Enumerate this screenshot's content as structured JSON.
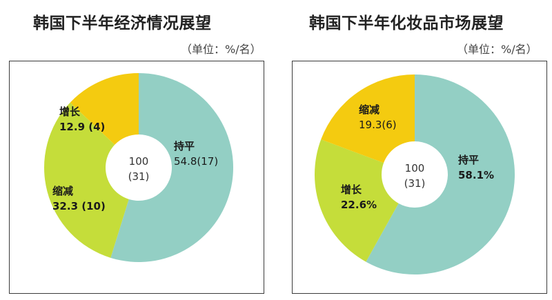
{
  "chart_data": [
    {
      "type": "pie",
      "title": "韩国下半年经济情况展望",
      "unit": "（单位：%/名）",
      "total": "100",
      "total_count": "(31)",
      "slices": [
        {
          "name": "持平",
          "value": 54.8,
          "count": 17,
          "display": "54.8(17)",
          "color": "#93cfc4",
          "bold": false
        },
        {
          "name": "缩减",
          "value": 32.3,
          "count": 10,
          "display": "32.3 (10)",
          "color": "#c5dd3a",
          "bold": true
        },
        {
          "name": "增长",
          "value": 12.9,
          "count": 4,
          "display": "12.9 (4)",
          "color": "#f4cb10",
          "bold": true
        }
      ]
    },
    {
      "type": "pie",
      "title": "韩国下半年化妆品市场展望",
      "unit": "（单位：%/名）",
      "total": "100",
      "total_count": "(31)",
      "slices": [
        {
          "name": "持平",
          "value": 58.1,
          "display": "58.1%",
          "color": "#93cfc4",
          "bold": true
        },
        {
          "name": "增长",
          "value": 22.6,
          "display": "22.6%",
          "color": "#c5dd3a",
          "bold": true
        },
        {
          "name": "缩减",
          "value": 19.3,
          "count": 6,
          "display": "19.3(6)",
          "color": "#f4cb10",
          "bold": false
        }
      ]
    }
  ]
}
